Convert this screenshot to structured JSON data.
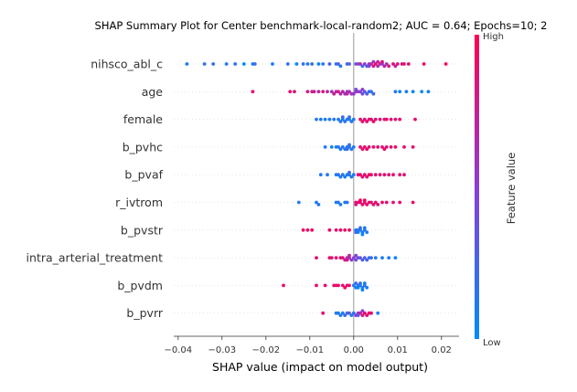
{
  "chart_data": {
    "type": "scatter",
    "subtype": "shap-beeswarm",
    "title": "SHAP Summary Plot for Center benchmark-local-random2; AUC = 0.64; Epochs=10; 2",
    "xlabel": "SHAP value (impact on model output)",
    "ylabel": "",
    "xlim": [
      -0.041,
      0.024
    ],
    "xticks": [
      -0.04,
      -0.03,
      -0.02,
      -0.01,
      0.0,
      0.01,
      0.02
    ],
    "xtick_labels": [
      "−0.04",
      "−0.03",
      "−0.02",
      "−0.01",
      "0.00",
      "0.01",
      "0.02"
    ],
    "grid": false,
    "colorbar": {
      "label": "Feature value",
      "high_label": "High",
      "low_label": "Low",
      "high_color": "#ff0052",
      "low_color": "#008bfb"
    },
    "features": [
      {
        "name": "nihsco_abl_c",
        "points": [
          [
            -0.038,
            0.1
          ],
          [
            -0.034,
            0.15
          ],
          [
            -0.032,
            0.2
          ],
          [
            -0.029,
            0.1
          ],
          [
            -0.027,
            0.15
          ],
          [
            -0.025,
            0.0
          ],
          [
            -0.023,
            0.1
          ],
          [
            -0.0225,
            0.2
          ],
          [
            -0.0185,
            0.1
          ],
          [
            -0.015,
            0.2
          ],
          [
            -0.013,
            0.0
          ],
          [
            -0.0115,
            0.2
          ],
          [
            -0.0105,
            0.1
          ],
          [
            -0.0095,
            0.2
          ],
          [
            -0.008,
            0.05
          ],
          [
            -0.007,
            0.1
          ],
          [
            -0.0055,
            0.3
          ],
          [
            -0.004,
            0.15
          ],
          [
            -0.0035,
            0.3
          ],
          [
            -0.003,
            0.1
          ],
          [
            -0.0015,
            0.25
          ],
          [
            -0.001,
            0.3
          ],
          [
            0.0005,
            0.3
          ],
          [
            0.001,
            0.5
          ],
          [
            0.0015,
            0.7
          ],
          [
            0.002,
            0.2
          ],
          [
            0.0025,
            0.5
          ],
          [
            0.003,
            0.3
          ],
          [
            0.0035,
            0.6
          ],
          [
            0.004,
            0.7
          ],
          [
            0.0045,
            0.8
          ],
          [
            0.005,
            0.9
          ],
          [
            0.0055,
            0.6
          ],
          [
            0.006,
            0.8
          ],
          [
            0.0065,
            0.5
          ],
          [
            0.007,
            0.7
          ],
          [
            0.0075,
            0.6
          ],
          [
            0.008,
            0.8
          ],
          [
            0.009,
            0.9
          ],
          [
            0.0095,
            0.7
          ],
          [
            0.01,
            0.8
          ],
          [
            0.011,
            0.9
          ],
          [
            0.0115,
            0.8
          ],
          [
            0.0125,
            0.9
          ],
          [
            0.016,
            0.9
          ],
          [
            0.021,
            1.0
          ],
          [
            0.0045,
            0.55
          ],
          [
            0.0055,
            0.75
          ],
          [
            0.0065,
            0.85
          ],
          [
            0.0035,
            0.45
          ]
        ]
      },
      {
        "name": "age",
        "points": [
          [
            -0.023,
            0.9
          ],
          [
            -0.0145,
            0.9
          ],
          [
            -0.0135,
            0.85
          ],
          [
            -0.0105,
            0.8
          ],
          [
            -0.0095,
            0.8
          ],
          [
            -0.009,
            0.75
          ],
          [
            -0.008,
            0.7
          ],
          [
            -0.007,
            0.85
          ],
          [
            -0.006,
            0.7
          ],
          [
            -0.005,
            0.6
          ],
          [
            -0.0045,
            0.75
          ],
          [
            -0.004,
            0.7
          ],
          [
            -0.0035,
            0.8
          ],
          [
            -0.003,
            0.65
          ],
          [
            -0.0025,
            0.7
          ],
          [
            -0.002,
            0.6
          ],
          [
            -0.0015,
            0.55
          ],
          [
            -0.001,
            0.6
          ],
          [
            -0.0005,
            0.6
          ],
          [
            0.0005,
            0.5
          ],
          [
            0.001,
            0.6
          ],
          [
            0.0015,
            0.45
          ],
          [
            0.002,
            0.4
          ],
          [
            0.0025,
            0.35
          ],
          [
            0.003,
            0.3
          ],
          [
            0.0035,
            0.2
          ],
          [
            0.004,
            0.15
          ],
          [
            0.0045,
            0.25
          ],
          [
            0.002,
            0.5
          ],
          [
            0.0,
            0.55
          ],
          [
            -0.0015,
            0.7
          ],
          [
            0.0005,
            0.45
          ],
          [
            0.0095,
            0.1
          ],
          [
            0.0105,
            0.05
          ],
          [
            0.012,
            0.1
          ],
          [
            0.0135,
            0.05
          ],
          [
            0.0155,
            0.0
          ],
          [
            0.017,
            0.05
          ]
        ]
      },
      {
        "name": "female",
        "points": [
          [
            -0.0085,
            0.1
          ],
          [
            -0.0075,
            0.1
          ],
          [
            -0.0065,
            0.1
          ],
          [
            -0.0055,
            0.1
          ],
          [
            -0.0045,
            0.15
          ],
          [
            -0.0035,
            0.1
          ],
          [
            -0.003,
            0.15
          ],
          [
            -0.0025,
            0.1
          ],
          [
            -0.002,
            0.15
          ],
          [
            -0.0015,
            0.1
          ],
          [
            -0.001,
            0.1
          ],
          [
            -0.0005,
            0.15
          ],
          [
            0.0,
            0.1
          ],
          [
            -0.0025,
            0.2
          ],
          [
            -0.001,
            0.2
          ],
          [
            0.0015,
            0.9
          ],
          [
            0.002,
            0.9
          ],
          [
            0.0025,
            0.85
          ],
          [
            0.003,
            0.9
          ],
          [
            0.0035,
            0.85
          ],
          [
            0.004,
            0.9
          ],
          [
            0.0045,
            0.9
          ],
          [
            0.005,
            0.85
          ],
          [
            0.006,
            0.9
          ],
          [
            0.007,
            0.85
          ],
          [
            0.0075,
            0.9
          ],
          [
            0.0085,
            0.9
          ],
          [
            0.0095,
            0.85
          ],
          [
            0.0105,
            0.9
          ],
          [
            0.014,
            0.9
          ]
        ]
      },
      {
        "name": "b_pvhc",
        "points": [
          [
            -0.0065,
            0.1
          ],
          [
            -0.005,
            0.1
          ],
          [
            -0.004,
            0.1
          ],
          [
            -0.0035,
            0.15
          ],
          [
            -0.003,
            0.1
          ],
          [
            -0.0025,
            0.15
          ],
          [
            -0.002,
            0.1
          ],
          [
            -0.0015,
            0.1
          ],
          [
            -0.001,
            0.15
          ],
          [
            -0.0005,
            0.1
          ],
          [
            0.0,
            0.1
          ],
          [
            -0.001,
            0.2
          ],
          [
            -0.0015,
            0.2
          ],
          [
            0.0015,
            0.9
          ],
          [
            0.002,
            0.85
          ],
          [
            0.0025,
            0.9
          ],
          [
            0.003,
            0.9
          ],
          [
            0.0035,
            0.85
          ],
          [
            0.0045,
            0.9
          ],
          [
            0.0055,
            0.9
          ],
          [
            0.0065,
            0.85
          ],
          [
            0.007,
            0.9
          ],
          [
            0.0075,
            0.85
          ],
          [
            0.0085,
            0.9
          ],
          [
            0.0095,
            0.9
          ],
          [
            0.0115,
            0.9
          ],
          [
            0.0135,
            0.9
          ]
        ]
      },
      {
        "name": "b_pvaf",
        "points": [
          [
            -0.0075,
            0.1
          ],
          [
            -0.006,
            0.1
          ],
          [
            -0.004,
            0.1
          ],
          [
            -0.0035,
            0.15
          ],
          [
            -0.003,
            0.1
          ],
          [
            -0.0025,
            0.15
          ],
          [
            -0.002,
            0.1
          ],
          [
            -0.0015,
            0.1
          ],
          [
            -0.001,
            0.15
          ],
          [
            -0.0005,
            0.1
          ],
          [
            0.0,
            0.1
          ],
          [
            -0.001,
            0.2
          ],
          [
            0.001,
            0.9
          ],
          [
            0.0015,
            0.85
          ],
          [
            0.002,
            0.9
          ],
          [
            0.0025,
            0.9
          ],
          [
            0.003,
            0.85
          ],
          [
            0.0035,
            0.9
          ],
          [
            0.004,
            0.9
          ],
          [
            0.005,
            0.85
          ],
          [
            0.006,
            0.9
          ],
          [
            0.007,
            0.9
          ],
          [
            0.008,
            0.85
          ],
          [
            0.009,
            0.9
          ],
          [
            0.0105,
            0.9
          ],
          [
            0.0115,
            0.85
          ]
        ]
      },
      {
        "name": "r_ivtrom",
        "points": [
          [
            -0.0125,
            0.1
          ],
          [
            -0.0085,
            0.1
          ],
          [
            -0.008,
            0.15
          ],
          [
            -0.004,
            0.1
          ],
          [
            -0.0035,
            0.15
          ],
          [
            -0.003,
            0.1
          ],
          [
            -0.002,
            0.1
          ],
          [
            -0.0015,
            0.15
          ],
          [
            0.0005,
            0.9
          ],
          [
            0.001,
            0.85
          ],
          [
            0.0015,
            0.9
          ],
          [
            0.002,
            0.9
          ],
          [
            0.0025,
            0.85
          ],
          [
            0.003,
            0.9
          ],
          [
            0.0035,
            0.9
          ],
          [
            0.004,
            0.85
          ],
          [
            0.0045,
            0.9
          ],
          [
            0.005,
            0.9
          ],
          [
            0.0055,
            0.85
          ],
          [
            0.0065,
            0.9
          ],
          [
            0.0075,
            0.9
          ],
          [
            0.009,
            0.85
          ],
          [
            0.0105,
            0.9
          ],
          [
            0.0135,
            0.9
          ],
          [
            0.0015,
            0.95
          ],
          [
            0.0025,
            0.95
          ],
          [
            0.0005,
            0.8
          ]
        ]
      },
      {
        "name": "b_pvstr",
        "points": [
          [
            -0.0115,
            0.95
          ],
          [
            -0.0105,
            0.9
          ],
          [
            -0.0095,
            0.95
          ],
          [
            -0.0055,
            0.95
          ],
          [
            -0.004,
            0.9
          ],
          [
            -0.003,
            0.9
          ],
          [
            -0.002,
            0.9
          ],
          [
            -0.001,
            0.95
          ],
          [
            0.0005,
            0.1
          ],
          [
            0.001,
            0.15
          ],
          [
            0.0015,
            0.1
          ],
          [
            0.002,
            0.1
          ],
          [
            0.0025,
            0.15
          ],
          [
            0.003,
            0.1
          ],
          [
            0.001,
            0.05
          ],
          [
            0.0005,
            0.2
          ],
          [
            0.0015,
            0.2
          ],
          [
            0.002,
            0.05
          ],
          [
            0.0025,
            0.1
          ]
        ]
      },
      {
        "name": "intra_arterial_treatment",
        "points": [
          [
            -0.0085,
            0.9
          ],
          [
            -0.0055,
            0.9
          ],
          [
            -0.005,
            0.85
          ],
          [
            -0.004,
            0.9
          ],
          [
            -0.003,
            0.9
          ],
          [
            -0.0025,
            0.85
          ],
          [
            -0.002,
            0.8
          ],
          [
            -0.0015,
            0.7
          ],
          [
            -0.001,
            0.6
          ],
          [
            -0.0005,
            0.5
          ],
          [
            0.0,
            0.5
          ],
          [
            0.0005,
            0.4
          ],
          [
            0.001,
            0.4
          ],
          [
            0.0015,
            0.35
          ],
          [
            0.002,
            0.3
          ],
          [
            0.0025,
            0.3
          ],
          [
            0.003,
            0.25
          ],
          [
            0.0035,
            0.2
          ],
          [
            0.004,
            0.2
          ],
          [
            0.005,
            0.15
          ],
          [
            0.0065,
            0.1
          ],
          [
            0.008,
            0.1
          ],
          [
            0.0095,
            0.05
          ],
          [
            -0.001,
            0.7
          ],
          [
            0.0005,
            0.5
          ],
          [
            -0.0015,
            0.8
          ]
        ]
      },
      {
        "name": "b_pvdm",
        "points": [
          [
            -0.016,
            0.9
          ],
          [
            -0.0085,
            0.9
          ],
          [
            -0.0065,
            0.9
          ],
          [
            -0.0045,
            0.9
          ],
          [
            -0.004,
            0.9
          ],
          [
            -0.0035,
            0.9
          ],
          [
            -0.0025,
            0.9
          ],
          [
            -0.002,
            0.9
          ],
          [
            -0.0015,
            0.9
          ],
          [
            -0.001,
            0.85
          ],
          [
            0.0,
            0.1
          ],
          [
            0.0005,
            0.1
          ],
          [
            0.001,
            0.15
          ],
          [
            0.0015,
            0.1
          ],
          [
            0.002,
            0.1
          ],
          [
            0.0025,
            0.15
          ],
          [
            0.003,
            0.1
          ],
          [
            0.001,
            0.05
          ],
          [
            0.0005,
            0.2
          ],
          [
            0.0015,
            0.2
          ],
          [
            0.002,
            0.05
          ],
          [
            0.0025,
            0.1
          ]
        ]
      },
      {
        "name": "b_pvrr",
        "points": [
          [
            -0.007,
            0.9
          ],
          [
            -0.004,
            0.15
          ],
          [
            -0.0035,
            0.1
          ],
          [
            -0.003,
            0.15
          ],
          [
            -0.0025,
            0.1
          ],
          [
            -0.002,
            0.15
          ],
          [
            -0.0015,
            0.3
          ],
          [
            -0.001,
            0.3
          ],
          [
            -0.0005,
            0.1
          ],
          [
            0.0,
            0.15
          ],
          [
            0.0005,
            0.5
          ],
          [
            0.001,
            0.6
          ],
          [
            0.0015,
            0.7
          ],
          [
            0.002,
            0.8
          ],
          [
            0.0025,
            0.9
          ],
          [
            0.003,
            0.85
          ],
          [
            0.0035,
            0.9
          ],
          [
            0.004,
            0.9
          ],
          [
            0.0055,
            0.1
          ],
          [
            0.001,
            0.3
          ],
          [
            0.002,
            0.5
          ]
        ]
      }
    ]
  }
}
